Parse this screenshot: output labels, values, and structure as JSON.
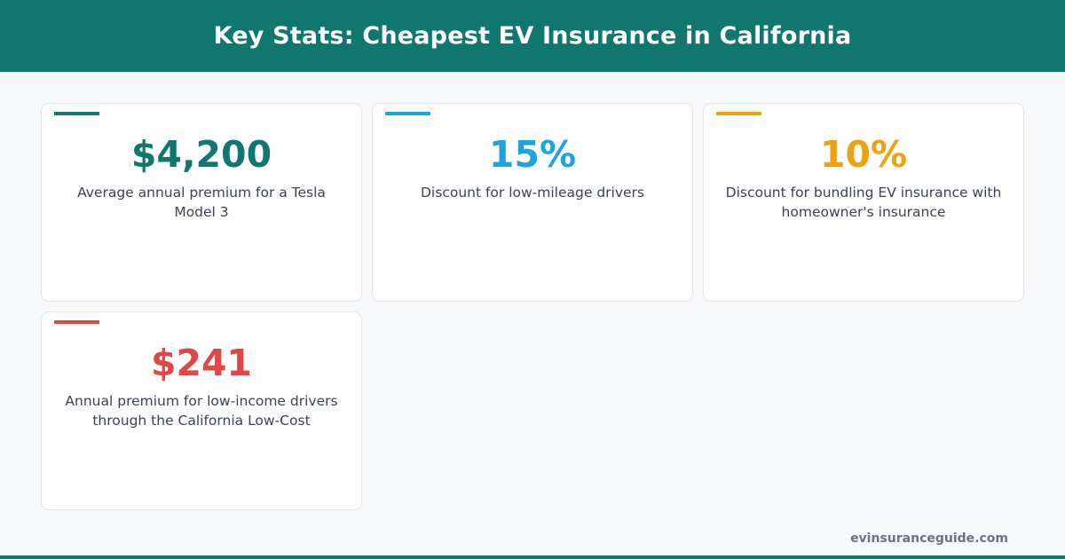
{
  "header": {
    "title": "Key Stats: Cheapest EV Insurance in California"
  },
  "cards": [
    {
      "value": "$4,200",
      "description": "Average annual premium for a Tesla Model 3",
      "color": "#10776e"
    },
    {
      "value": "15%",
      "description": "Discount for low-mileage drivers",
      "color": "#1ea4dc"
    },
    {
      "value": "10%",
      "description": "Discount for bundling EV insurance with homeowner's insurance",
      "color": "#eea30c"
    },
    {
      "value": "$241",
      "description": "Annual premium for low-income drivers through the California Low-Cost",
      "color": "#e04747"
    }
  ],
  "footer": {
    "site": "evinsuranceguide.com"
  }
}
